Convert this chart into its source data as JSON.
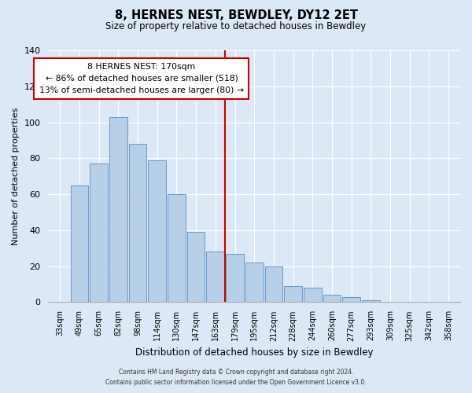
{
  "title": "8, HERNES NEST, BEWDLEY, DY12 2ET",
  "subtitle": "Size of property relative to detached houses in Bewdley",
  "xlabel": "Distribution of detached houses by size in Bewdley",
  "ylabel": "Number of detached properties",
  "bar_labels": [
    "33sqm",
    "49sqm",
    "65sqm",
    "82sqm",
    "98sqm",
    "114sqm",
    "130sqm",
    "147sqm",
    "163sqm",
    "179sqm",
    "195sqm",
    "212sqm",
    "228sqm",
    "244sqm",
    "260sqm",
    "277sqm",
    "293sqm",
    "309sqm",
    "325sqm",
    "342sqm",
    "358sqm"
  ],
  "bar_values": [
    0,
    65,
    77,
    103,
    88,
    79,
    60,
    39,
    28,
    27,
    22,
    20,
    9,
    8,
    4,
    3,
    1,
    0,
    0,
    0,
    0
  ],
  "bar_color": "#b8cfe8",
  "bar_edge_color": "#6699cc",
  "ylim": [
    0,
    140
  ],
  "yticks": [
    0,
    20,
    40,
    60,
    80,
    100,
    120,
    140
  ],
  "vline_x": 8.5,
  "vline_color": "#cc0000",
  "annotation_title": "8 HERNES NEST: 170sqm",
  "annotation_line1": "← 86% of detached houses are smaller (518)",
  "annotation_line2": "13% of semi-detached houses are larger (80) →",
  "annotation_box_color": "#cc0000",
  "footer_line1": "Contains HM Land Registry data © Crown copyright and database right 2024.",
  "footer_line2": "Contains public sector information licensed under the Open Government Licence v3.0.",
  "background_color": "#dce8f5",
  "plot_bg_color": "#dce8f5"
}
